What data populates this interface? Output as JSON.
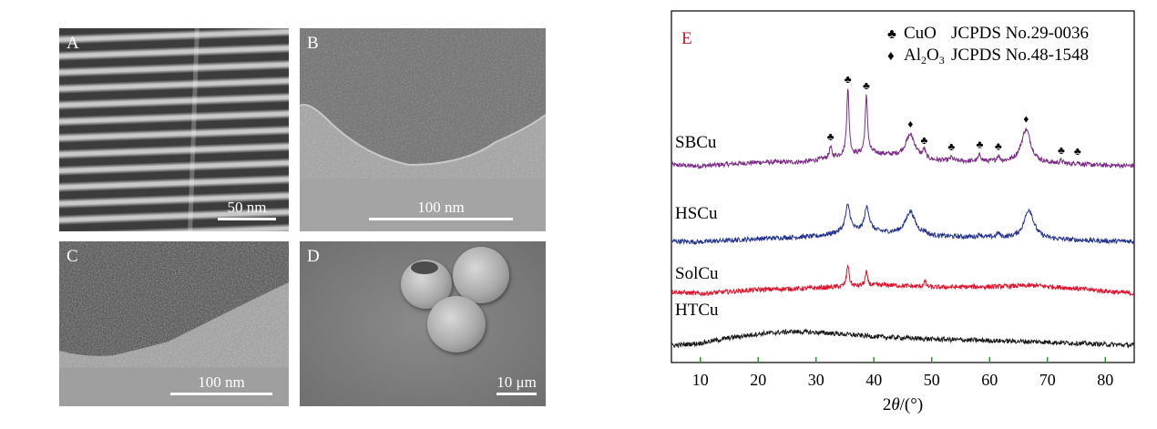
{
  "panels": {
    "A": {
      "letter": "A",
      "scale": "50 nm"
    },
    "B": {
      "letter": "B",
      "scale": "100 nm"
    },
    "C": {
      "letter": "C",
      "scale": "100 nm"
    },
    "D": {
      "letter": "D",
      "scale": "10 μm"
    }
  },
  "chart_data": {
    "type": "line",
    "panel_label": "E",
    "xlabel_main": "2",
    "xlabel_italic": "θ",
    "xlabel_tail": "/(°)",
    "xlim": [
      5,
      85
    ],
    "xticks": [
      "10",
      "20",
      "30",
      "40",
      "50",
      "60",
      "70",
      "80"
    ],
    "grid": false,
    "legend_position": "top-right",
    "legend": [
      {
        "symbol": "♣",
        "name": "CuO",
        "ref": "JCPDS No.29-0036"
      },
      {
        "symbol": "♦",
        "name_main": "Al",
        "sub1": "2",
        "name_mid": "O",
        "sub2": "3",
        "ref": "JCPDS No.48-1548"
      }
    ],
    "colors": {
      "SBCu": "#7a2a86",
      "HSCu": "#24338f",
      "SolCu": "#e0102a",
      "HTCu": "#1a1a1a",
      "axis": "#000000",
      "tick": "#2a9a2a",
      "label_E": "#b3202a"
    },
    "series": [
      {
        "name": "SBCu",
        "color": "#7a2a86",
        "baseline": [
          [
            5,
            0.6
          ],
          [
            10,
            0.2
          ],
          [
            20,
            1.5
          ],
          [
            28,
            1.6
          ],
          [
            34,
            3.5
          ],
          [
            40,
            4.5
          ],
          [
            50,
            2.0
          ],
          [
            60,
            1.6
          ],
          [
            70,
            1.0
          ],
          [
            80,
            0.4
          ],
          [
            85,
            0.3
          ]
        ],
        "peaks": [
          [
            32.5,
            3.6,
            0.25
          ],
          [
            35.5,
            22.5,
            0.25
          ],
          [
            38.7,
            19.8,
            0.25
          ],
          [
            46.3,
            8.0,
            1.0
          ],
          [
            48.7,
            3.0,
            0.25
          ],
          [
            53.4,
            1.2,
            0.3
          ],
          [
            58.3,
            2.2,
            0.3
          ],
          [
            61.5,
            1.8,
            0.3
          ],
          [
            66.3,
            11.5,
            1.0
          ],
          [
            72.4,
            1.0,
            0.3
          ],
          [
            75.2,
            0.8,
            0.3
          ]
        ]
      },
      {
        "name": "HSCu",
        "color": "#24338f",
        "baseline": [
          [
            5,
            0.4
          ],
          [
            10,
            0.1
          ],
          [
            20,
            1.2
          ],
          [
            30,
            2.0
          ],
          [
            35,
            3.5
          ],
          [
            40,
            3.5
          ],
          [
            50,
            2.0
          ],
          [
            60,
            1.6
          ],
          [
            70,
            1.0
          ],
          [
            80,
            0.4
          ],
          [
            85,
            0.3
          ]
        ],
        "peaks": [
          [
            35.5,
            9.0,
            0.5
          ],
          [
            38.8,
            8.5,
            0.5
          ],
          [
            46.3,
            8.0,
            1.0
          ],
          [
            48.8,
            1.0,
            0.3
          ],
          [
            58.3,
            1.0,
            0.3
          ],
          [
            61.5,
            1.4,
            0.3
          ],
          [
            66.8,
            10.0,
            1.0
          ]
        ]
      },
      {
        "name": "SolCu",
        "color": "#e0102a",
        "baseline": [
          [
            5,
            1.5
          ],
          [
            10,
            0.8
          ],
          [
            20,
            2.2
          ],
          [
            28,
            2.6
          ],
          [
            35,
            3.2
          ],
          [
            42,
            3.8
          ],
          [
            50,
            3.0
          ],
          [
            60,
            3.2
          ],
          [
            68,
            3.6
          ],
          [
            75,
            2.6
          ],
          [
            85,
            0.8
          ]
        ],
        "peaks": [
          [
            35.5,
            7.5,
            0.25
          ],
          [
            38.7,
            4.5,
            0.25
          ],
          [
            48.8,
            2.0,
            0.25
          ]
        ]
      },
      {
        "name": "HTCu",
        "color": "#1a1a1a",
        "baseline": [
          [
            5,
            0.2
          ],
          [
            10,
            1.0
          ],
          [
            15,
            2.8
          ],
          [
            20,
            4.2
          ],
          [
            26,
            5.0
          ],
          [
            32,
            4.5
          ],
          [
            40,
            3.3
          ],
          [
            50,
            2.4
          ],
          [
            60,
            1.9
          ],
          [
            70,
            1.4
          ],
          [
            80,
            0.6
          ],
          [
            85,
            0.3
          ]
        ],
        "peaks": []
      }
    ]
  }
}
